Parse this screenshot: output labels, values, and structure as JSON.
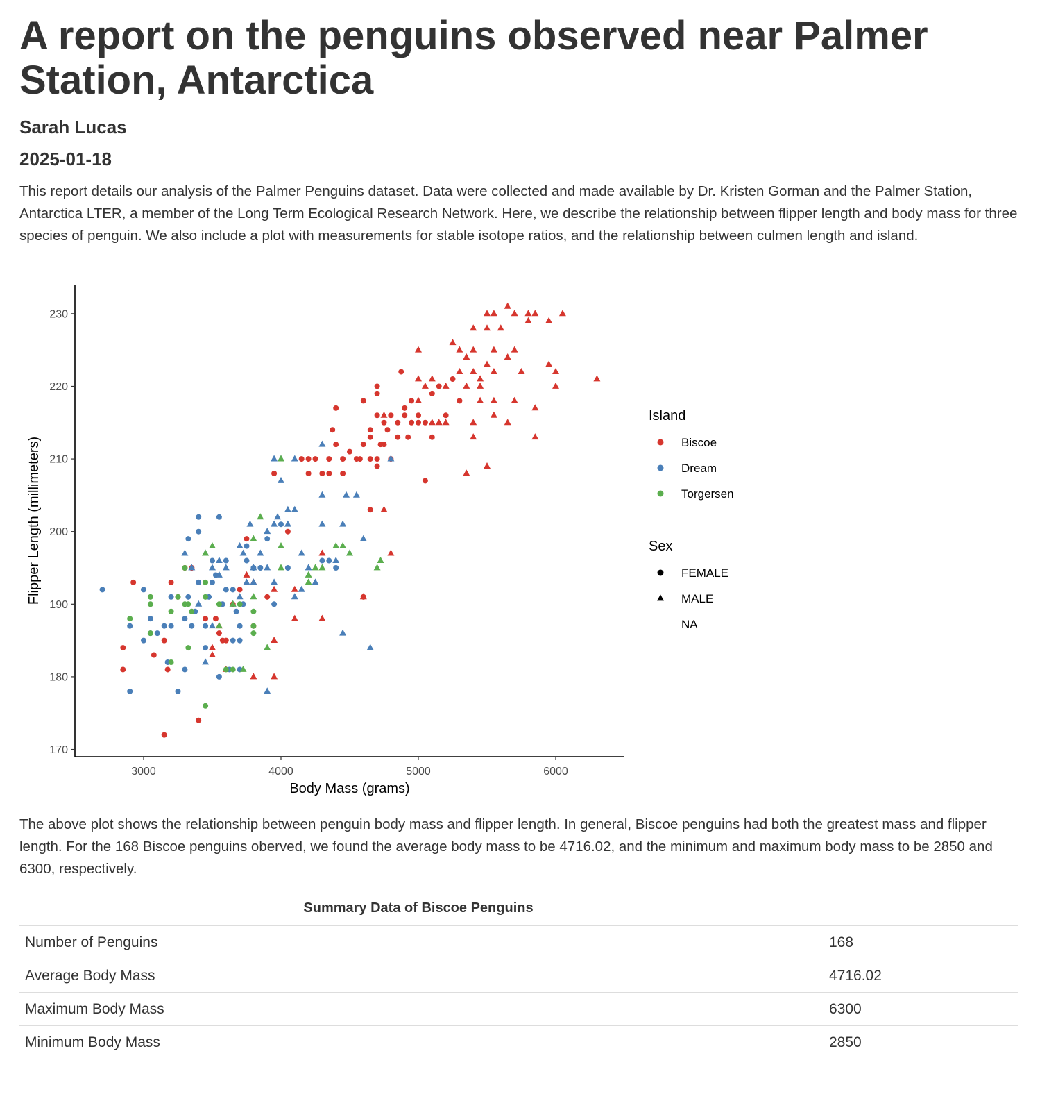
{
  "header": {
    "title": "A report on the penguins observed near Palmer Station, Antarctica",
    "author": "Sarah Lucas",
    "date": "2025-01-18"
  },
  "intro": "This report details our analysis of the Palmer Penguins dataset. Data were collected and made available by Dr. Kristen Gorman and the Palmer Station, Antarctica LTER, a member of the Long Term Ecological Research Network. Here, we describe the relationship between flipper length and body mass for three species of penguin. We also include a plot with measurements for stable isotope ratios, and the relationship between culmen length and island.",
  "chart_data": {
    "type": "scatter",
    "xlabel": "Body Mass (grams)",
    "ylabel": "Flipper Length (millimeters)",
    "xlim": [
      2500,
      6500
    ],
    "ylim": [
      169,
      234
    ],
    "xticks": [
      3000,
      4000,
      5000,
      6000
    ],
    "yticks": [
      170,
      180,
      190,
      200,
      210,
      220,
      230
    ],
    "grid": false,
    "legend_placement": "right",
    "color_legend": {
      "title": "Island",
      "entries": [
        {
          "label": "Biscoe",
          "color": "#D6362E"
        },
        {
          "label": "Dream",
          "color": "#4A7FB8"
        },
        {
          "label": "Torgersen",
          "color": "#5BAE4E"
        }
      ]
    },
    "shape_legend": {
      "title": "Sex",
      "entries": [
        {
          "label": "FEMALE",
          "shape": "circle"
        },
        {
          "label": "MALE",
          "shape": "triangle"
        },
        {
          "label": "NA",
          "shape": "none"
        }
      ]
    },
    "series": [
      {
        "name": "Biscoe",
        "color": "#D6362E",
        "female": [
          [
            2850,
            184
          ],
          [
            2850,
            181
          ],
          [
            2925,
            193
          ],
          [
            3075,
            183
          ],
          [
            3150,
            172
          ],
          [
            3150,
            185
          ],
          [
            3175,
            181
          ],
          [
            3200,
            193
          ],
          [
            3250,
            191
          ],
          [
            3350,
            195
          ],
          [
            3400,
            174
          ],
          [
            3525,
            188
          ],
          [
            3550,
            186
          ],
          [
            3575,
            185
          ],
          [
            3650,
            190
          ],
          [
            3700,
            192
          ],
          [
            3750,
            199
          ],
          [
            3800,
            187
          ],
          [
            3900,
            191
          ],
          [
            3950,
            208
          ],
          [
            4050,
            200
          ],
          [
            4150,
            210
          ],
          [
            4200,
            208
          ],
          [
            4200,
            210
          ],
          [
            4250,
            210
          ],
          [
            4300,
            208
          ],
          [
            4350,
            208
          ],
          [
            4350,
            210
          ],
          [
            4375,
            214
          ],
          [
            4400,
            212
          ],
          [
            4400,
            217
          ],
          [
            4450,
            210
          ],
          [
            4450,
            208
          ],
          [
            4500,
            211
          ],
          [
            4550,
            210
          ],
          [
            4575,
            210
          ],
          [
            4600,
            212
          ],
          [
            4600,
            218
          ],
          [
            4650,
            210
          ],
          [
            4650,
            214
          ],
          [
            4650,
            213
          ],
          [
            4700,
            209
          ],
          [
            4700,
            210
          ],
          [
            4700,
            216
          ],
          [
            4700,
            219
          ],
          [
            4700,
            220
          ],
          [
            4725,
            212
          ],
          [
            4750,
            212
          ],
          [
            4750,
            215
          ],
          [
            4775,
            214
          ],
          [
            4800,
            210
          ],
          [
            4800,
            216
          ],
          [
            4850,
            213
          ],
          [
            4850,
            215
          ],
          [
            4875,
            222
          ],
          [
            4900,
            217
          ],
          [
            4900,
            216
          ],
          [
            4925,
            213
          ],
          [
            4950,
            218
          ],
          [
            4950,
            215
          ],
          [
            5000,
            215
          ],
          [
            5000,
            216
          ],
          [
            5050,
            207
          ],
          [
            5050,
            215
          ],
          [
            5100,
            219
          ],
          [
            5100,
            213
          ],
          [
            5150,
            220
          ],
          [
            5200,
            216
          ],
          [
            5250,
            221
          ],
          [
            5300,
            218
          ],
          [
            4650,
            203
          ],
          [
            4600,
            191
          ],
          [
            3300,
            195
          ],
          [
            3350,
            195
          ],
          [
            3600,
            185
          ],
          [
            3450,
            188
          ]
        ],
        "male": [
          [
            3500,
            184
          ],
          [
            3500,
            183
          ],
          [
            3550,
            187
          ],
          [
            3600,
            181
          ],
          [
            3750,
            194
          ],
          [
            3800,
            193
          ],
          [
            3800,
            180
          ],
          [
            3950,
            185
          ],
          [
            3950,
            180
          ],
          [
            3950,
            192
          ],
          [
            4100,
            188
          ],
          [
            4100,
            192
          ],
          [
            4300,
            188
          ],
          [
            4300,
            197
          ],
          [
            4600,
            191
          ],
          [
            4750,
            203
          ],
          [
            4800,
            197
          ],
          [
            4750,
            216
          ],
          [
            5000,
            225
          ],
          [
            5000,
            221
          ],
          [
            5000,
            218
          ],
          [
            5050,
            220
          ],
          [
            5100,
            215
          ],
          [
            5100,
            221
          ],
          [
            5150,
            215
          ],
          [
            5200,
            215
          ],
          [
            5200,
            220
          ],
          [
            5250,
            226
          ],
          [
            5300,
            225
          ],
          [
            5300,
            222
          ],
          [
            5350,
            220
          ],
          [
            5350,
            208
          ],
          [
            5400,
            228
          ],
          [
            5400,
            213
          ],
          [
            5400,
            215
          ],
          [
            5400,
            222
          ],
          [
            5450,
            218
          ],
          [
            5450,
            220
          ],
          [
            5500,
            230
          ],
          [
            5500,
            228
          ],
          [
            5500,
            209
          ],
          [
            5550,
            230
          ],
          [
            5550,
            216
          ],
          [
            5550,
            222
          ],
          [
            5550,
            218
          ],
          [
            5600,
            228
          ],
          [
            5650,
            231
          ],
          [
            5650,
            224
          ],
          [
            5650,
            215
          ],
          [
            5700,
            230
          ],
          [
            5700,
            225
          ],
          [
            5700,
            218
          ],
          [
            5750,
            222
          ],
          [
            5800,
            229
          ],
          [
            5800,
            230
          ],
          [
            5850,
            230
          ],
          [
            5850,
            217
          ],
          [
            5850,
            213
          ],
          [
            5950,
            229
          ],
          [
            5950,
            223
          ],
          [
            6000,
            222
          ],
          [
            6000,
            220
          ],
          [
            6050,
            230
          ],
          [
            6300,
            221
          ],
          [
            5350,
            224
          ],
          [
            5400,
            225
          ],
          [
            5500,
            223
          ],
          [
            5550,
            225
          ],
          [
            5450,
            221
          ]
        ]
      },
      {
        "name": "Dream",
        "color": "#4A7FB8",
        "female": [
          [
            2700,
            192
          ],
          [
            2900,
            187
          ],
          [
            2900,
            178
          ],
          [
            3000,
            192
          ],
          [
            3000,
            185
          ],
          [
            3050,
            188
          ],
          [
            3050,
            186
          ],
          [
            3100,
            186
          ],
          [
            3150,
            187
          ],
          [
            3175,
            182
          ],
          [
            3200,
            191
          ],
          [
            3200,
            187
          ],
          [
            3250,
            178
          ],
          [
            3300,
            181
          ],
          [
            3300,
            188
          ],
          [
            3325,
            191
          ],
          [
            3325,
            199
          ],
          [
            3350,
            187
          ],
          [
            3375,
            189
          ],
          [
            3400,
            193
          ],
          [
            3400,
            200
          ],
          [
            3400,
            202
          ],
          [
            3450,
            187
          ],
          [
            3450,
            184
          ],
          [
            3475,
            191
          ],
          [
            3500,
            193
          ],
          [
            3500,
            196
          ],
          [
            3525,
            194
          ],
          [
            3550,
            202
          ],
          [
            3550,
            180
          ],
          [
            3575,
            190
          ],
          [
            3600,
            192
          ],
          [
            3600,
            196
          ],
          [
            3625,
            181
          ],
          [
            3650,
            185
          ],
          [
            3650,
            192
          ],
          [
            3675,
            189
          ],
          [
            3700,
            187
          ],
          [
            3700,
            181
          ],
          [
            3700,
            185
          ],
          [
            3725,
            190
          ],
          [
            3750,
            196
          ],
          [
            3750,
            198
          ],
          [
            3800,
            195
          ],
          [
            3850,
            195
          ],
          [
            3900,
            199
          ],
          [
            3950,
            190
          ],
          [
            4000,
            201
          ],
          [
            4050,
            195
          ],
          [
            4300,
            196
          ],
          [
            4350,
            196
          ],
          [
            4400,
            195
          ]
        ],
        "male": [
          [
            3300,
            197
          ],
          [
            3350,
            195
          ],
          [
            3400,
            190
          ],
          [
            3450,
            197
          ],
          [
            3450,
            182
          ],
          [
            3500,
            187
          ],
          [
            3500,
            195
          ],
          [
            3550,
            194
          ],
          [
            3550,
            196
          ],
          [
            3600,
            195
          ],
          [
            3650,
            190
          ],
          [
            3700,
            198
          ],
          [
            3700,
            191
          ],
          [
            3725,
            197
          ],
          [
            3750,
            193
          ],
          [
            3775,
            201
          ],
          [
            3800,
            193
          ],
          [
            3800,
            195
          ],
          [
            3850,
            197
          ],
          [
            3900,
            195
          ],
          [
            3900,
            178
          ],
          [
            3950,
            210
          ],
          [
            3950,
            201
          ],
          [
            3975,
            202
          ],
          [
            4000,
            210
          ],
          [
            4000,
            207
          ],
          [
            4050,
            201
          ],
          [
            4050,
            203
          ],
          [
            4100,
            203
          ],
          [
            4100,
            210
          ],
          [
            4150,
            197
          ],
          [
            4150,
            192
          ],
          [
            4200,
            195
          ],
          [
            4300,
            212
          ],
          [
            4300,
            205
          ],
          [
            4400,
            196
          ],
          [
            4450,
            201
          ],
          [
            4450,
            186
          ],
          [
            4475,
            205
          ],
          [
            4550,
            205
          ],
          [
            4600,
            199
          ],
          [
            4650,
            184
          ],
          [
            4800,
            210
          ],
          [
            3900,
            200
          ],
          [
            4100,
            191
          ],
          [
            3950,
            193
          ],
          [
            4250,
            193
          ],
          [
            4300,
            201
          ],
          [
            4500,
            197
          ]
        ]
      },
      {
        "name": "Torgersen",
        "color": "#5BAE4E",
        "female": [
          [
            2900,
            188
          ],
          [
            3050,
            191
          ],
          [
            3050,
            190
          ],
          [
            3050,
            186
          ],
          [
            3200,
            182
          ],
          [
            3200,
            189
          ],
          [
            3250,
            191
          ],
          [
            3300,
            190
          ],
          [
            3325,
            190
          ],
          [
            3350,
            189
          ],
          [
            3325,
            184
          ],
          [
            3450,
            193
          ],
          [
            3450,
            176
          ],
          [
            3550,
            190
          ],
          [
            3600,
            181
          ],
          [
            3650,
            181
          ],
          [
            3800,
            189
          ],
          [
            3800,
            187
          ],
          [
            3800,
            186
          ],
          [
            3700,
            190
          ],
          [
            3300,
            195
          ],
          [
            3450,
            191
          ]
        ],
        "male": [
          [
            3450,
            197
          ],
          [
            3500,
            198
          ],
          [
            3550,
            187
          ],
          [
            3650,
            190
          ],
          [
            3725,
            181
          ],
          [
            3800,
            199
          ],
          [
            3800,
            191
          ],
          [
            3850,
            202
          ],
          [
            3900,
            184
          ],
          [
            4000,
            198
          ],
          [
            4000,
            210
          ],
          [
            4000,
            195
          ],
          [
            4200,
            194
          ],
          [
            4200,
            193
          ],
          [
            4250,
            195
          ],
          [
            4300,
            195
          ],
          [
            4400,
            198
          ],
          [
            4450,
            198
          ],
          [
            4500,
            197
          ],
          [
            4700,
            195
          ],
          [
            4725,
            196
          ]
        ]
      }
    ]
  },
  "body": {
    "paragraph": "The above plot shows the relationship between penguin body mass and flipper length. In general, Biscoe penguins had both the greatest mass and flipper length. For the 168 Biscoe penguins oberved, we found the average body mass to be 4716.02, and the minimum and maximum body mass to be 2850 and 6300, respectively."
  },
  "summary_table": {
    "caption": "Summary Data of Biscoe Penguins",
    "rows": [
      {
        "label": "Number of Penguins",
        "value": "168"
      },
      {
        "label": "Average Body Mass",
        "value": "4716.02"
      },
      {
        "label": "Maximum Body Mass",
        "value": "6300"
      },
      {
        "label": "Minimum Body Mass",
        "value": "2850"
      }
    ]
  }
}
